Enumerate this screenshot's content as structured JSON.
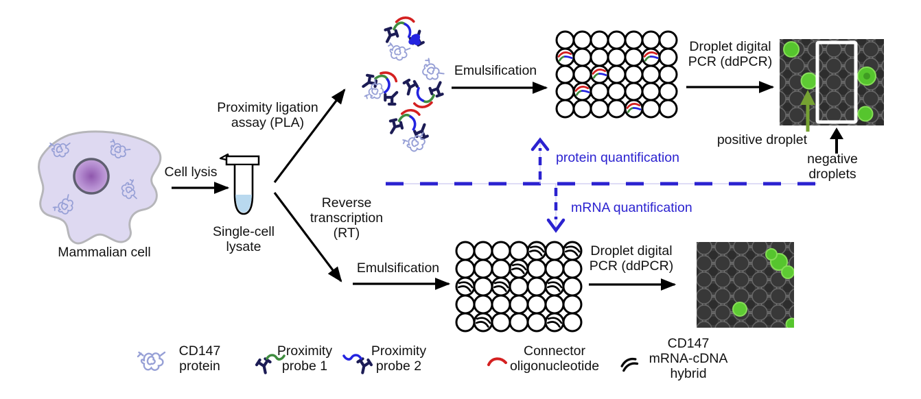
{
  "figure": {
    "title_domain": "Single-cell protein and mRNA quantification workflow",
    "entities": {
      "mammalian_cell": "Mammalian cell",
      "single_cell_lysate": "Single-cell\nlysate"
    },
    "steps": {
      "cell_lysis": "Cell lysis",
      "pla": "Proximity ligation\nassay (PLA)",
      "reverse_transcription": "Reverse\ntranscription\n(RT)",
      "emulsification_top": "Emulsification",
      "emulsification_bottom": "Emulsification",
      "ddpcr_top": "Droplet digital\nPCR (ddPCR)",
      "ddpcr_bottom": "Droplet digital\nPCR (ddPCR)"
    },
    "annotations": {
      "protein_quantification": "protein quantification",
      "mrna_quantification": "mRNA quantification",
      "positive_droplet": "positive droplet",
      "negative_droplets": "negative droplets"
    },
    "legend": [
      {
        "icon": "cd147-protein-icon",
        "label": "CD147\nprotein"
      },
      {
        "icon": "proximity-probe-1-icon",
        "label": "Proximity\nprobe 1"
      },
      {
        "icon": "proximity-probe-2-icon",
        "label": "Proximity\nprobe 2"
      },
      {
        "icon": "connector-oligonucleotide-icon",
        "label": "Connector\noligonucleotide"
      },
      {
        "icon": "mrna-cdna-hybrid-icon",
        "label": "CD147\nmRNA-cDNA\nhybrid"
      }
    ],
    "droplet_grids": {
      "protein": {
        "rows": 5,
        "cols": 7,
        "content": "pla-complex",
        "filled": [
          [
            1,
            0
          ],
          [
            1,
            5
          ],
          [
            2,
            2
          ],
          [
            3,
            1
          ],
          [
            4,
            4
          ]
        ]
      },
      "mrna": {
        "rows": 5,
        "cols": 7,
        "content": "mrna-cdna-hybrid",
        "filled": [
          [
            0,
            4
          ],
          [
            0,
            6
          ],
          [
            1,
            3
          ],
          [
            2,
            0
          ],
          [
            2,
            2
          ],
          [
            2,
            5
          ],
          [
            4,
            1
          ],
          [
            4,
            5
          ]
        ]
      }
    },
    "colors": {
      "quantification_blue": "#2b22d0",
      "connector_red": "#d42020",
      "probe1_green": "#3f8c3f",
      "probe2_blue": "#2424e0",
      "antibody_navy": "#1c1c55",
      "protein_periwinkle": "#97a0d6",
      "cell_fill": "#ded9f1",
      "nucleus_purple": "#8f57ad",
      "lysate_liquid": "#b9d9ef",
      "positive_droplet_green": "#56c52e",
      "positive_arrow_green": "#76a232"
    }
  }
}
